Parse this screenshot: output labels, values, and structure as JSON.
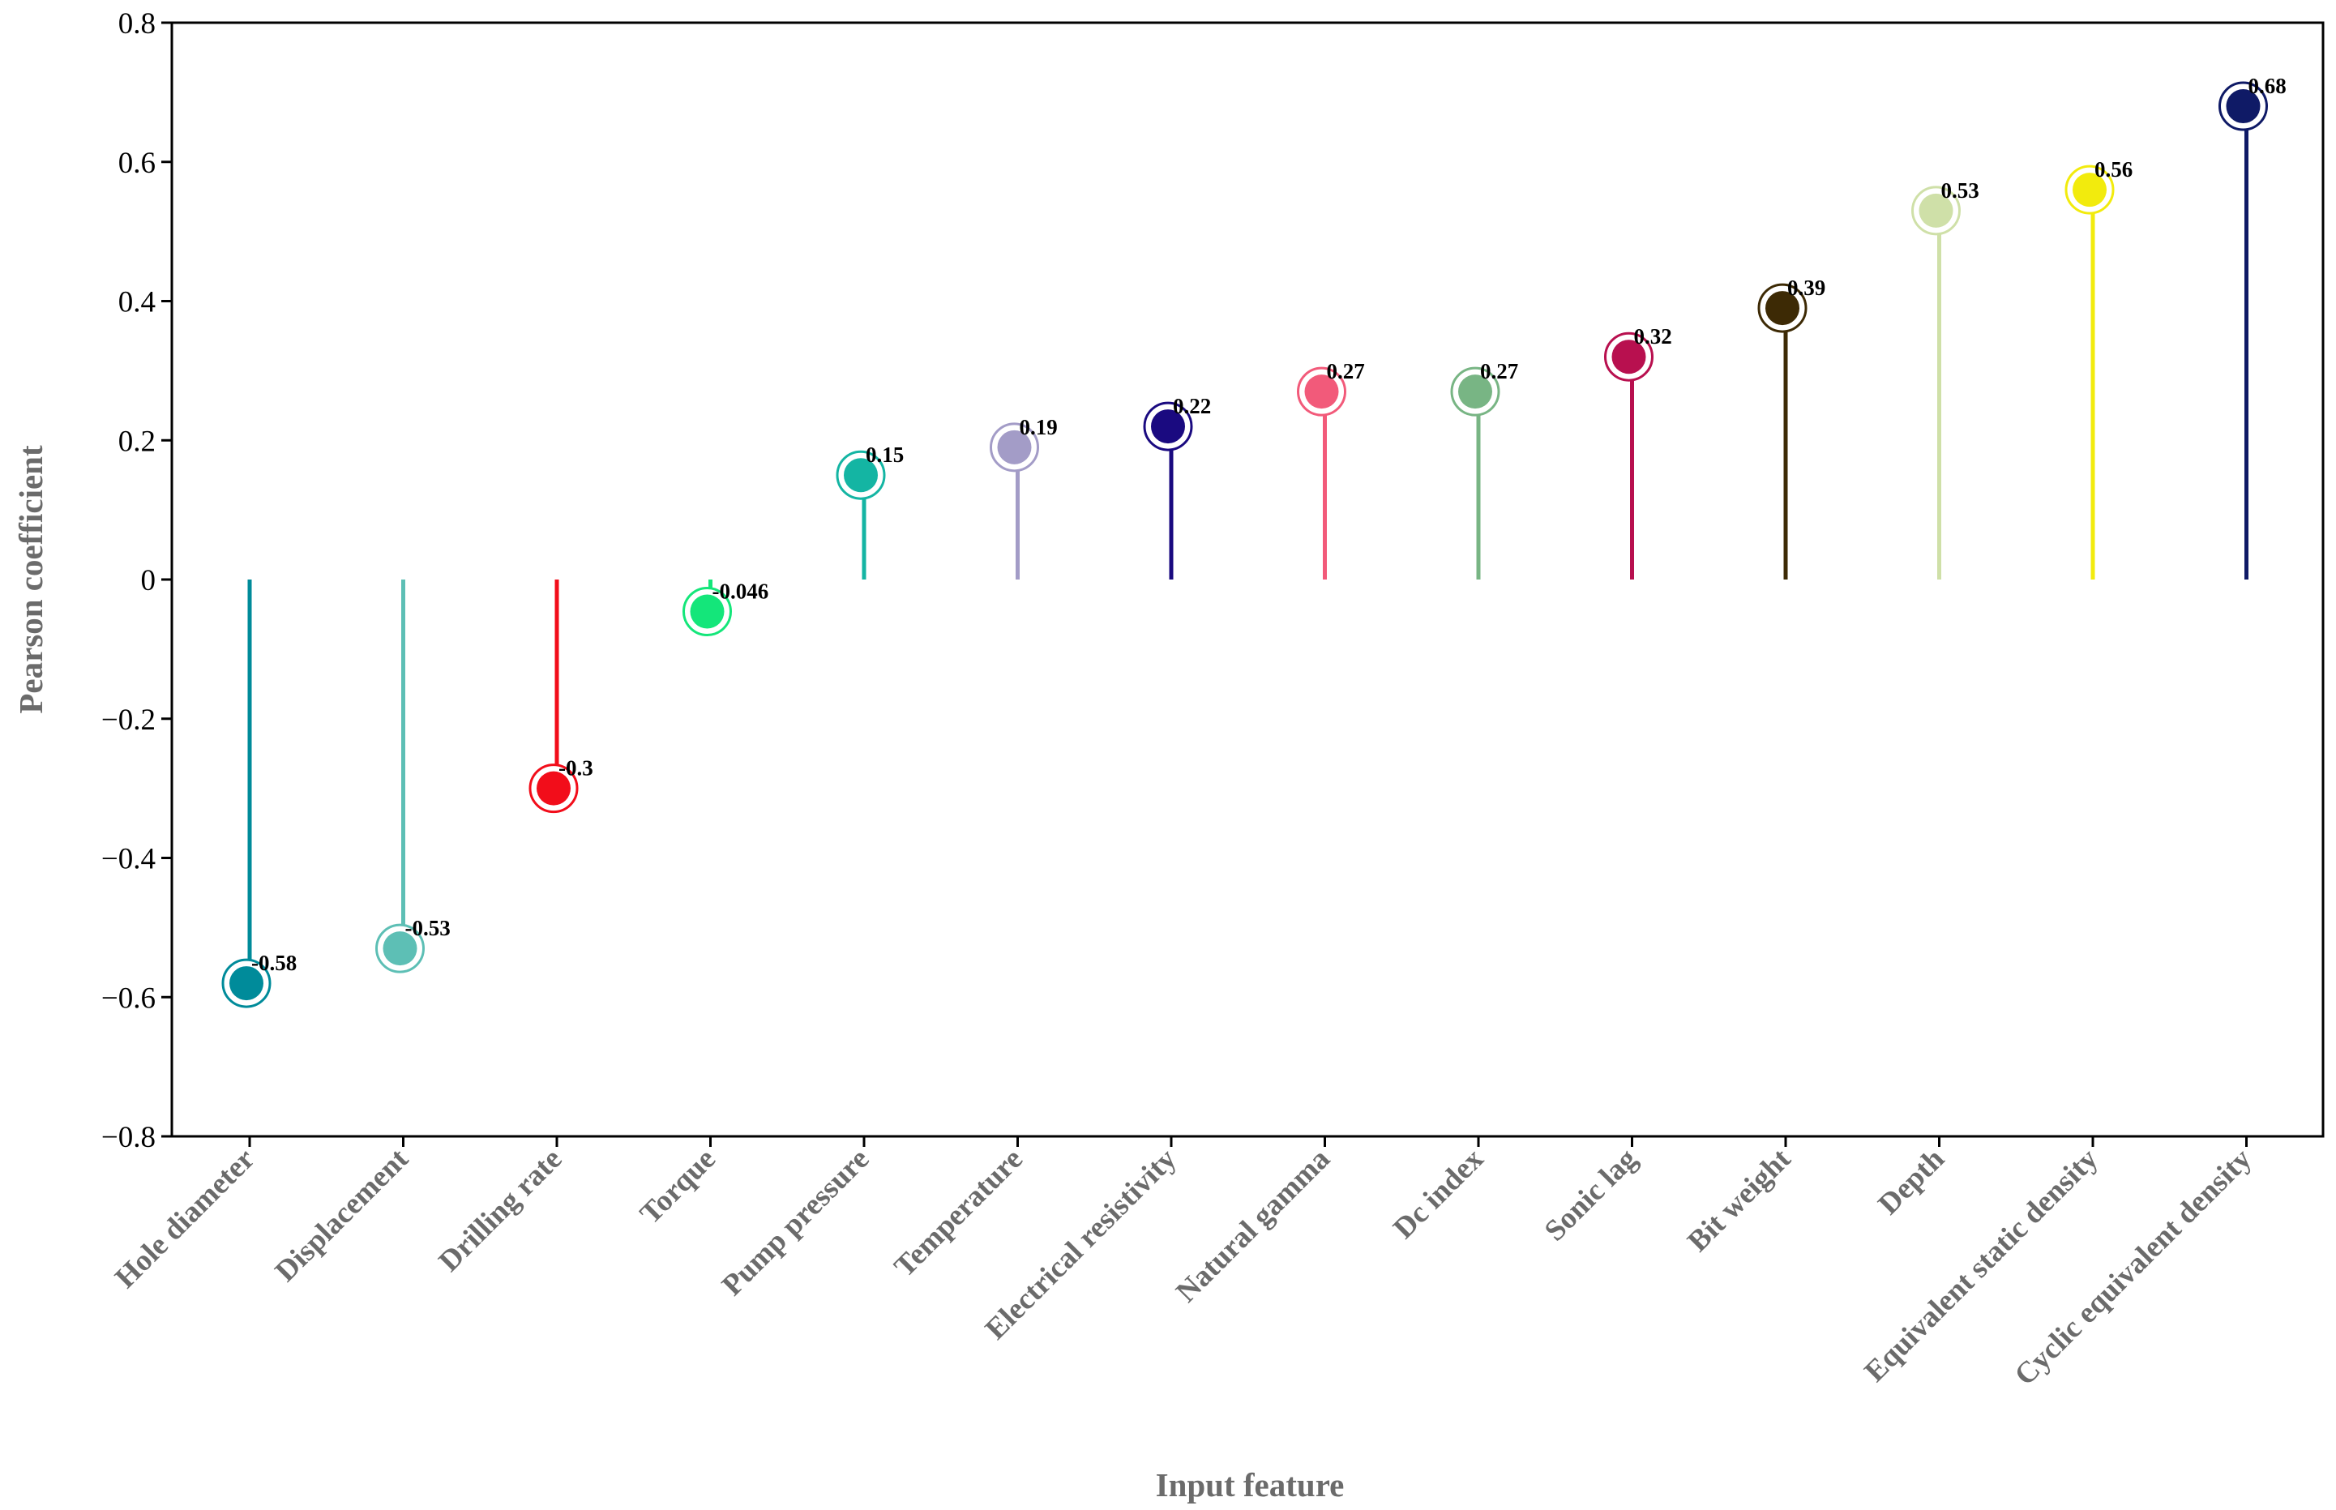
{
  "chart_data": {
    "type": "lollipop",
    "xlabel": "Input feature",
    "ylabel": "Pearson coefficient",
    "ylim": [
      -0.8,
      0.8
    ],
    "yticks": [
      0.8,
      0.6,
      0.4,
      0.2,
      0,
      -0.2,
      -0.4,
      -0.6,
      -0.8
    ],
    "ytick_labels": [
      "0.8",
      "0.6",
      "0.4",
      "0.2",
      "0",
      "−0.2",
      "−0.4",
      "−0.6",
      "−0.8"
    ],
    "grid": false,
    "categories": [
      "Hole diameter",
      "Displacement",
      "Drilling rate",
      "Torque",
      "Pump pressure",
      "Temperature",
      "Electrical resistivity",
      "Natural gamma",
      "Dc index",
      "Sonic lag",
      "Bit weight",
      "Depth",
      "Equivalent static density",
      "Cyclic equivalent density"
    ],
    "values": [
      -0.58,
      -0.53,
      -0.3,
      -0.046,
      0.15,
      0.19,
      0.22,
      0.27,
      0.27,
      0.32,
      0.39,
      0.53,
      0.56,
      0.68
    ],
    "value_labels": [
      "-0.58",
      "-0.53",
      "-0.3",
      "-0.046",
      "0.15",
      "0.19",
      "0.22",
      "0.27",
      "0.27",
      "0.32",
      "0.39",
      "0.53",
      "0.56",
      "0.68"
    ],
    "colors": [
      "#008B9A",
      "#5DBFB5",
      "#F20D1A",
      "#14E67A",
      "#14B5A3",
      "#A39CC7",
      "#1A0A80",
      "#F25A7A",
      "#78B584",
      "#B8104F",
      "#3D2A05",
      "#CFE0A8",
      "#F2EB0D",
      "#0F1A66"
    ]
  }
}
